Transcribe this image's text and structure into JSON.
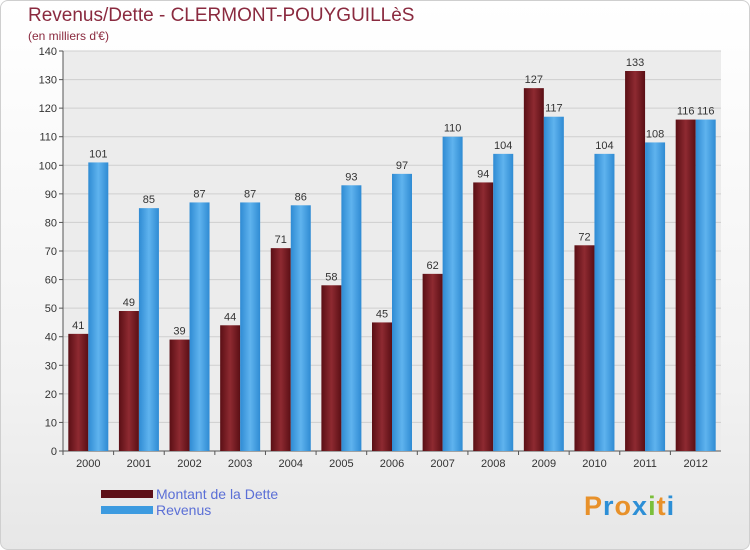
{
  "header": {
    "title": "Revenus/Dette - CLERMONT-POUYGUILLèS",
    "subtitle": "(en milliers d'€)"
  },
  "logo": {
    "text": "Proxiti",
    "letters": [
      "P",
      "r",
      "o",
      "x",
      "i",
      "t",
      "i"
    ],
    "colors": [
      "#e8912a",
      "#2d8fd6",
      "#e8912a",
      "#2d8fd6",
      "#7bbf3a",
      "#e8912a",
      "#2d8fd6"
    ]
  },
  "chart_data": {
    "type": "bar",
    "categories": [
      "2000",
      "2001",
      "2002",
      "2003",
      "2004",
      "2005",
      "2006",
      "2007",
      "2008",
      "2009",
      "2010",
      "2011",
      "2012"
    ],
    "series": [
      {
        "name": "Montant de la Dette",
        "color": "#7b1d24",
        "values": [
          41,
          49,
          39,
          44,
          71,
          58,
          45,
          62,
          94,
          127,
          72,
          133,
          116
        ]
      },
      {
        "name": "Revenus",
        "color": "#3d9be0",
        "values": [
          101,
          85,
          87,
          87,
          86,
          93,
          97,
          110,
          104,
          117,
          104,
          108,
          116
        ]
      }
    ],
    "ylim": [
      0,
      140
    ],
    "yticks": [
      0,
      10,
      20,
      30,
      40,
      50,
      60,
      70,
      80,
      90,
      100,
      110,
      120,
      130,
      140
    ],
    "grid": true,
    "legend": "bottom-left"
  }
}
